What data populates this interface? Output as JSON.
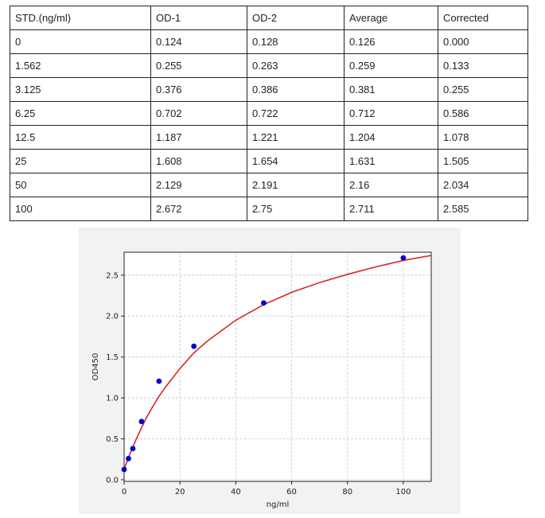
{
  "table": {
    "headers": [
      "STD.(ng/ml)",
      "OD-1",
      "OD-2",
      "Average",
      "Corrected"
    ],
    "rows": [
      [
        "0",
        "0.124",
        "0.128",
        "0.126",
        "0.000"
      ],
      [
        "1.562",
        "0.255",
        "0.263",
        "0.259",
        "0.133"
      ],
      [
        "3.125",
        "0.376",
        "0.386",
        "0.381",
        "0.255"
      ],
      [
        "6.25",
        "0.702",
        "0.722",
        "0.712",
        "0.586"
      ],
      [
        "12.5",
        "1.187",
        "1.221",
        "1.204",
        "1.078"
      ],
      [
        "25",
        "1.608",
        "1.654",
        "1.631",
        "1.505"
      ],
      [
        "50",
        "2.129",
        "2.191",
        "2.16",
        "2.034"
      ],
      [
        "100",
        "2.672",
        "2.75",
        "2.711",
        "2.585"
      ]
    ]
  },
  "chart_data": {
    "type": "scatter",
    "xlabel": "ng/ml",
    "ylabel": "OD450",
    "xlim": [
      0,
      110
    ],
    "ylim": [
      -0.02,
      2.78
    ],
    "xticks": [
      0,
      20,
      40,
      60,
      80,
      100
    ],
    "yticks": [
      0.0,
      0.5,
      1.0,
      1.5,
      2.0,
      2.5
    ],
    "ytick_labels": [
      "0.0",
      "0.5",
      "1.0",
      "1.5",
      "2.0",
      "2.5"
    ],
    "grid": true,
    "series": [
      {
        "kind": "points",
        "color": "#0000cc",
        "x": [
          0,
          1.562,
          3.125,
          6.25,
          12.5,
          25,
          50,
          100
        ],
        "y": [
          0.126,
          0.259,
          0.381,
          0.712,
          1.204,
          1.631,
          2.16,
          2.711
        ]
      },
      {
        "kind": "fit-curve",
        "color": "#d62728",
        "x": [
          0,
          2,
          4,
          6,
          8,
          10,
          12.5,
          15,
          20,
          25,
          30,
          40,
          50,
          60,
          70,
          80,
          90,
          100,
          110
        ],
        "y": [
          0.13,
          0.31,
          0.47,
          0.62,
          0.76,
          0.88,
          1.02,
          1.14,
          1.36,
          1.55,
          1.7,
          1.95,
          2.14,
          2.29,
          2.41,
          2.51,
          2.6,
          2.68,
          2.74
        ]
      }
    ]
  }
}
